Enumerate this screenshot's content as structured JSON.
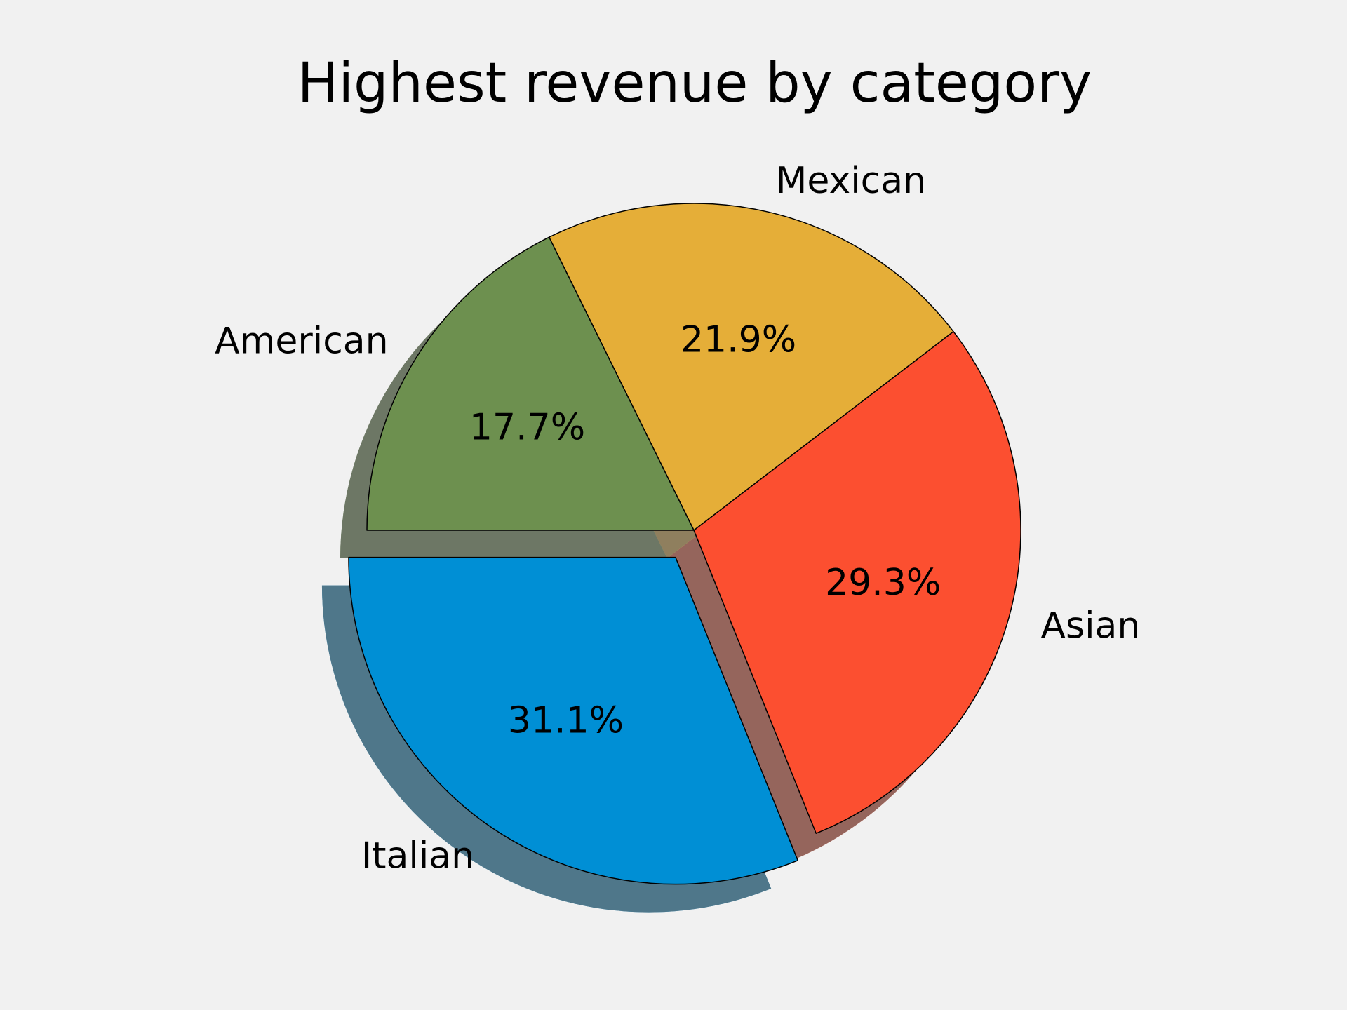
{
  "colors": {
    "background": "#f1f1f1",
    "shadow": "#6e6e6e"
  },
  "chart_data": {
    "type": "pie",
    "title": "Highest revenue by category",
    "slices": [
      {
        "label": "Italian",
        "value": 31.1,
        "pct_label": "31.1%",
        "color": "#008fd5",
        "exploded": true
      },
      {
        "label": "Asian",
        "value": 29.3,
        "pct_label": "29.3%",
        "color": "#fc4f30",
        "exploded": false
      },
      {
        "label": "Mexican",
        "value": 21.9,
        "pct_label": "21.9%",
        "color": "#e5ae38",
        "exploded": false
      },
      {
        "label": "American",
        "value": 17.7,
        "pct_label": "17.7%",
        "color": "#6d904f",
        "exploded": false
      }
    ],
    "start_angle_deg": 180,
    "direction": "counterclockwise",
    "shadow": true,
    "legend": false
  }
}
